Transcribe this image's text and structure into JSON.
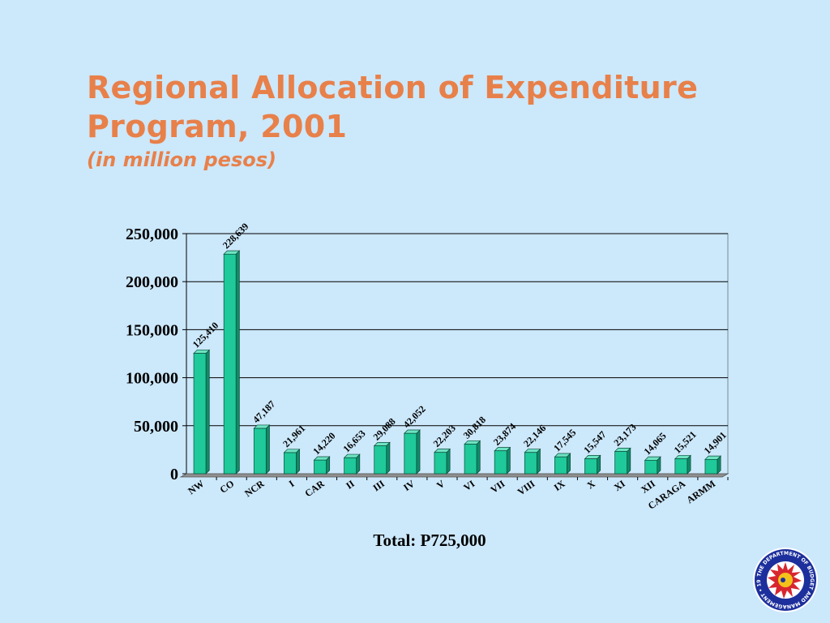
{
  "slide": {
    "title_line1": "Regional Allocation of Expenditure",
    "title_line2": "Program, 2001",
    "subtitle": "(in million pesos)",
    "total_note": "Total: P725,000",
    "seal_text": "THE DEPARTMENT OF BUDGET AND MANAGEMENT • 1936 •"
  },
  "colors": {
    "background": "#cce8fb",
    "title": "#e8804a",
    "bar_front": "#1fc99a",
    "bar_side": "#0f8a68",
    "bar_top": "#6ee3c2",
    "bar_outline": "#0a4a38",
    "gridline": "#000000"
  },
  "chart_data": {
    "type": "bar",
    "categories": [
      "NW",
      "CO",
      "NCR",
      "I",
      "CAR",
      "II",
      "III",
      "IV",
      "V",
      "VI",
      "VII",
      "VIII",
      "IX",
      "X",
      "XI",
      "XII",
      "CARAGA",
      "ARMM"
    ],
    "values": [
      125410,
      228639,
      47187,
      21961,
      14220,
      16653,
      29088,
      42052,
      22203,
      30818,
      23874,
      22146,
      17545,
      15547,
      23173,
      14065,
      15521,
      14901
    ],
    "data_labels": [
      "125,410",
      "228,639",
      "47,187",
      "21,961",
      "14,220",
      "16,653",
      "29,088",
      "42,052",
      "22,203",
      "30,818",
      "23,874",
      "22,146",
      "17,545",
      "15,547",
      "23,173",
      "14,065",
      "15,521",
      "14,901"
    ],
    "yticks": [
      "0",
      "50,000",
      "100,000",
      "150,000",
      "200,000",
      "250,000"
    ],
    "ylim": [
      0,
      250000
    ],
    "grid": true,
    "style": "3d-bar"
  }
}
